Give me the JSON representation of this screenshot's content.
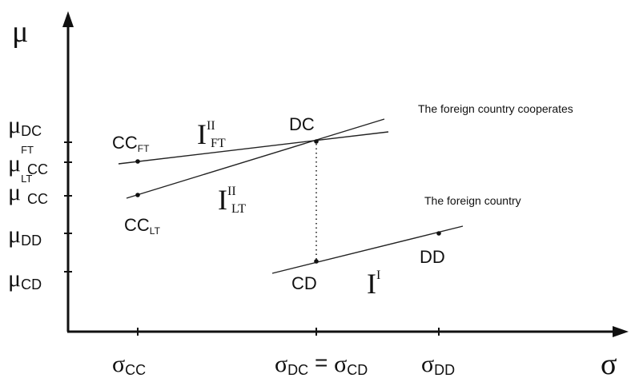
{
  "axes": {
    "y_symbol": "μ",
    "x_symbol": "σ"
  },
  "y_ticks": [
    {
      "base": "μ",
      "sup": "",
      "sub": "DC"
    },
    {
      "base": "μ",
      "sup": "FT",
      "sub": "CC"
    },
    {
      "base": "μ",
      "sup": "LT",
      "sub": "CC"
    },
    {
      "base": "μ",
      "sup": "",
      "sub": "DD"
    },
    {
      "base": "μ",
      "sup": "",
      "sub": "CD"
    }
  ],
  "x_ticks": {
    "cc": {
      "base": "σ",
      "sub": "CC"
    },
    "dc_cd": {
      "base1": "σ",
      "sub1": "DC",
      "eq": " = ",
      "base2": "σ",
      "sub2": "CD"
    },
    "dd": {
      "base": "σ",
      "sub": "DD"
    }
  },
  "points": {
    "cc_ft": {
      "base": "CC",
      "sub": "FT"
    },
    "cc_lt": {
      "base": "CC",
      "sub": "LT"
    },
    "dc": "DC",
    "cd": "CD",
    "dd": "DD"
  },
  "curves": {
    "i2_ft": {
      "base": "I",
      "sup": "II",
      "sub": "FT"
    },
    "i2_lt": {
      "base": "I",
      "sup": "II",
      "sub": "LT"
    },
    "i1": {
      "base": "I",
      "sup": "I"
    }
  },
  "annotations": {
    "cooperates": "The foreign country cooperates",
    "defects": "The foreign country"
  }
}
